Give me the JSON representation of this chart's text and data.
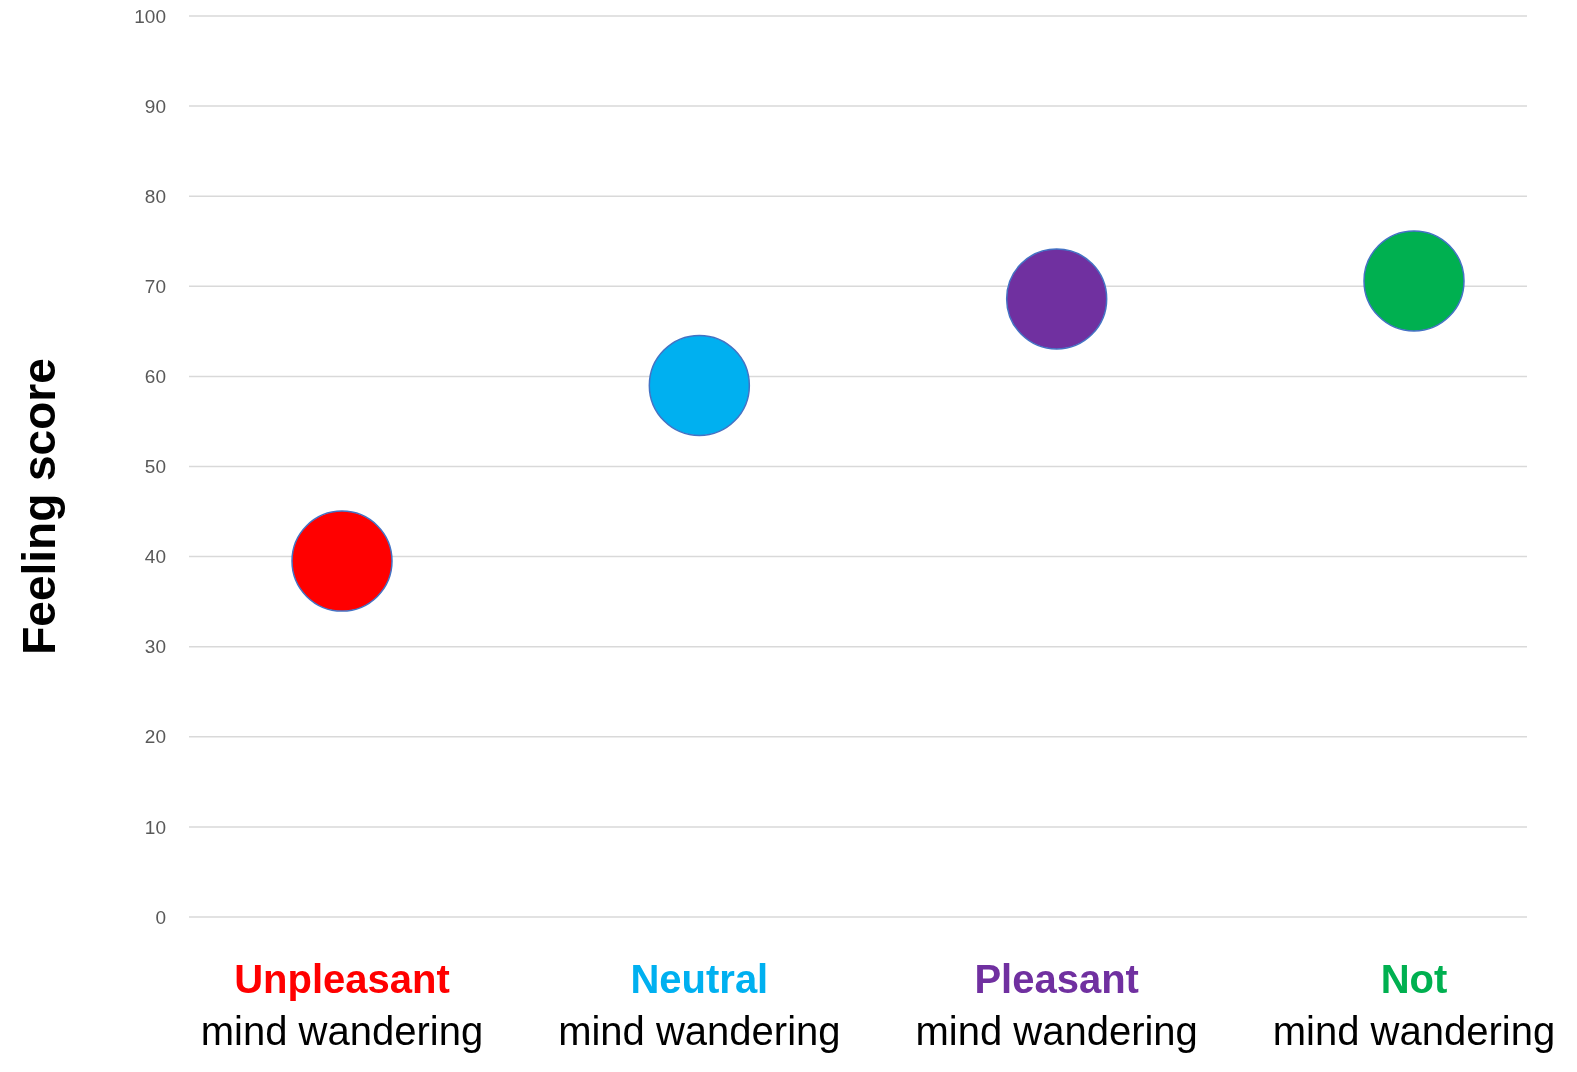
{
  "chart_data": {
    "type": "scatter",
    "ylabel": "Feeling score",
    "categories": [
      "Unpleasant\nmind wandering",
      "Neutral\nmind wandering",
      "Pleasant\nmind wandering",
      "Not\nmind wandering"
    ],
    "values": [
      39.5,
      59,
      68.6,
      70.6
    ],
    "colors": [
      "#ff0000",
      "#00b0f0",
      "#7030a0",
      "#00b050"
    ],
    "ylim": [
      0,
      100
    ],
    "yticks": [
      0,
      10,
      20,
      30,
      40,
      50,
      60,
      70,
      80,
      90,
      100
    ],
    "grid": "y",
    "marker": "circle"
  }
}
